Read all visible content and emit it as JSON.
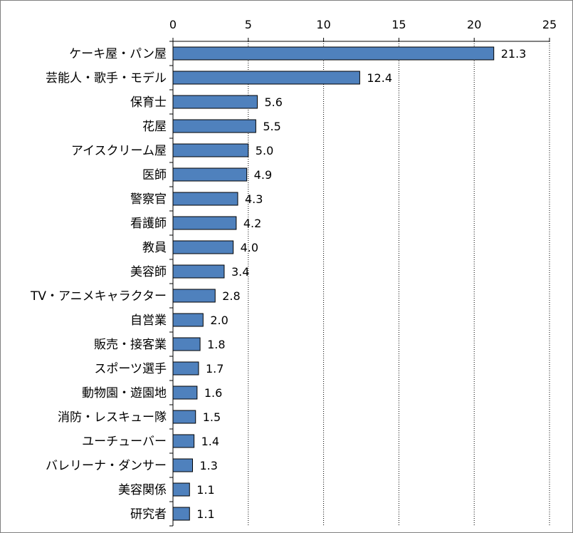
{
  "chart_data": {
    "type": "bar",
    "orientation": "horizontal",
    "title": "",
    "xlabel": "",
    "ylabel": "",
    "xlim": [
      0,
      25
    ],
    "x_ticks": [
      0,
      5,
      10,
      15,
      20,
      25
    ],
    "grid": "vertical dotted",
    "legend": "none",
    "bar_color": "#4F81BD",
    "bar_edge_color": "#000000",
    "categories": [
      "ケーキ屋・パン屋",
      "芸能人・歌手・モデル",
      "保育士",
      "花屋",
      "アイスクリーム屋",
      "医師",
      "警察官",
      "看護師",
      "教員",
      "美容師",
      "TV・アニメキャラクター",
      "自営業",
      "販売・接客業",
      "スポーツ選手",
      "動物園・遊園地",
      "消防・レスキュー隊",
      "ユーチューバー",
      "バレリーナ・ダンサー",
      "美容関係",
      "研究者"
    ],
    "values": [
      21.3,
      12.4,
      5.6,
      5.5,
      5.0,
      4.9,
      4.3,
      4.2,
      4.0,
      3.4,
      2.8,
      2.0,
      1.8,
      1.7,
      1.6,
      1.5,
      1.4,
      1.3,
      1.1,
      1.1
    ],
    "value_labels": [
      "21.3",
      "12.4",
      "5.6",
      "5.5",
      "5.0",
      "4.9",
      "4.3",
      "4.2",
      "4.0",
      "3.4",
      "2.8",
      "2.0",
      "1.8",
      "1.7",
      "1.6",
      "1.5",
      "1.4",
      "1.3",
      "1.1",
      "1.1"
    ]
  }
}
